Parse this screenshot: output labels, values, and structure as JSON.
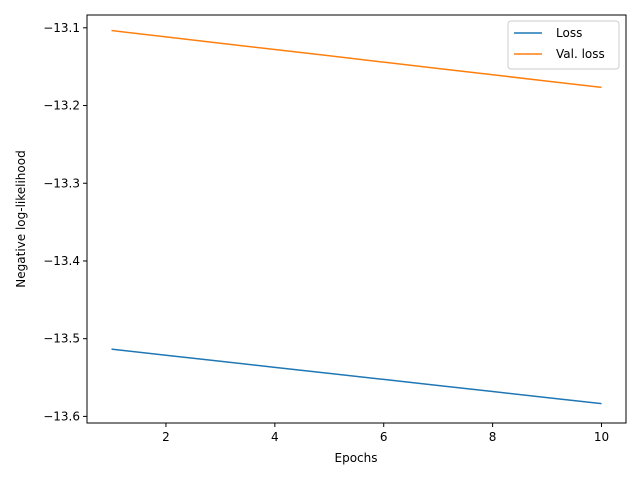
{
  "chart_data": {
    "type": "line",
    "title": "",
    "xlabel": "Epochs",
    "ylabel": "Negative log-likelihood",
    "xlim": [
      0.55,
      10.45
    ],
    "ylim": [
      -13.6085,
      -13.0835
    ],
    "xticks": [
      2,
      4,
      6,
      8,
      10
    ],
    "yticks": [
      -13.6,
      -13.5,
      -13.4,
      -13.3,
      -13.2,
      -13.1
    ],
    "ytick_labels": [
      "−13.6",
      "−13.5",
      "−13.4",
      "−13.3",
      "−13.2",
      "−13.1"
    ],
    "grid": false,
    "legend": "top-right",
    "series": [
      {
        "name": "Loss",
        "color": "#1f77b4",
        "x": [
          1,
          2,
          3,
          4,
          5,
          6,
          7,
          8,
          9,
          10
        ],
        "values": [
          -13.5135,
          -13.5213,
          -13.5291,
          -13.5369,
          -13.5447,
          -13.5524,
          -13.5602,
          -13.568,
          -13.5758,
          -13.5836
        ]
      },
      {
        "name": "Val. loss",
        "color": "#ff7f0e",
        "x": [
          1,
          2,
          3,
          4,
          5,
          6,
          7,
          8,
          9,
          10
        ],
        "values": [
          -13.1035,
          -13.1116,
          -13.1198,
          -13.1279,
          -13.136,
          -13.1442,
          -13.1523,
          -13.1604,
          -13.1686,
          -13.1767
        ]
      }
    ]
  }
}
